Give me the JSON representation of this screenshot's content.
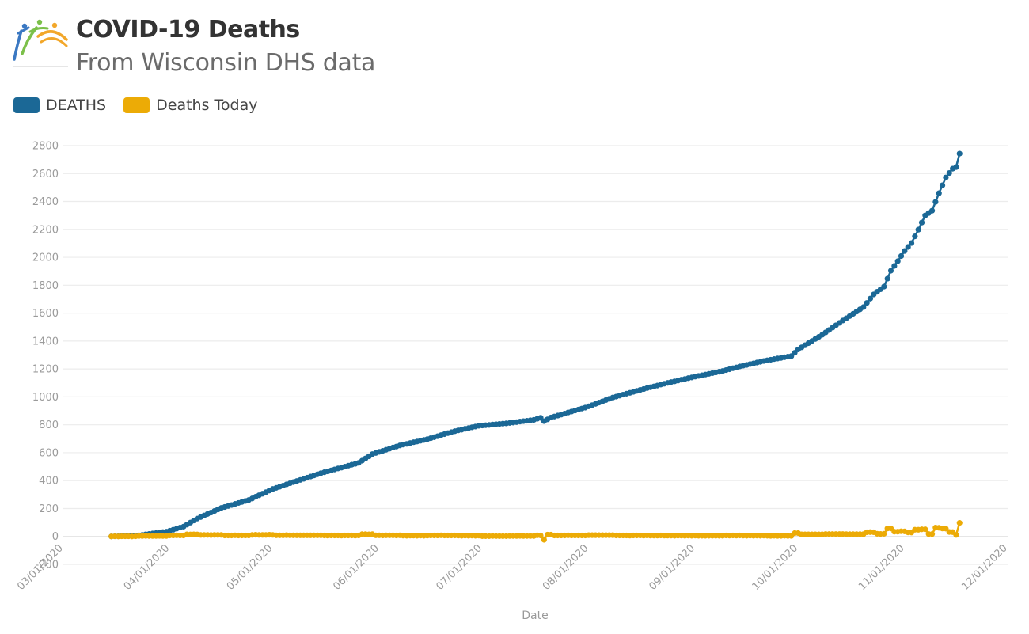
{
  "header": {
    "title": "COVID-19 Deaths",
    "subtitle": "From Wisconsin DHS data",
    "logo_icon": "people-rainbow-logo-icon"
  },
  "legend": [
    {
      "label": "DEATHS",
      "color": "#1b6896"
    },
    {
      "label": "Deaths Today",
      "color": "#ecab06"
    }
  ],
  "chart_data": {
    "type": "line",
    "title": "COVID-19 Deaths",
    "subtitle": "From Wisconsin DHS data",
    "xlabel": "Date",
    "ylabel": "",
    "x_start_date": "2020-03-15",
    "x_end_date": "2020-11-17",
    "x_range": [
      "2020-03-01",
      "2020-12-01"
    ],
    "ylim": [
      -200,
      2800
    ],
    "y_ticks": [
      -200,
      0,
      200,
      400,
      600,
      800,
      1000,
      1200,
      1400,
      1600,
      1800,
      2000,
      2200,
      2400,
      2600,
      2800
    ],
    "y_tick_labels": [
      "-200",
      "0",
      "200",
      "400",
      "600",
      "800",
      "1000",
      "1200",
      "1400",
      "1600",
      "1800",
      "2000",
      "2200",
      "2400",
      "2600",
      "2800"
    ],
    "x_tick_labels": [
      "03/01/2020",
      "04/01/2020",
      "05/01/2020",
      "06/01/2020",
      "07/01/2020",
      "08/01/2020",
      "09/01/2020",
      "10/01/2020",
      "11/01/2020",
      "12/01/2020"
    ],
    "x_tick_dates": [
      "2020-03-01",
      "2020-04-01",
      "2020-05-01",
      "2020-06-01",
      "2020-07-01",
      "2020-08-01",
      "2020-09-01",
      "2020-10-01",
      "2020-11-01",
      "2020-12-01"
    ],
    "grid": true,
    "legend_position": "top-left",
    "series": [
      {
        "name": "DEATHS",
        "color": "#1b6896",
        "values": [
          0,
          1,
          1,
          2,
          3,
          4,
          4,
          5,
          8,
          11,
          15,
          18,
          21,
          24,
          28,
          31,
          34,
          41,
          48,
          56,
          63,
          70,
          85,
          99,
          114,
          128,
          139,
          150,
          161,
          171,
          182,
          193,
          204,
          211,
          218,
          225,
          233,
          240,
          247,
          254,
          261,
          272,
          284,
          295,
          306,
          317,
          329,
          340,
          348,
          356,
          364,
          373,
          381,
          389,
          397,
          405,
          413,
          421,
          429,
          437,
          445,
          453,
          460,
          466,
          473,
          480,
          487,
          493,
          500,
          507,
          514,
          520,
          527,
          543,
          559,
          574,
          590,
          598,
          606,
          613,
          621,
          629,
          637,
          644,
          652,
          658,
          663,
          669,
          675,
          680,
          686,
          691,
          697,
          704,
          711,
          718,
          726,
          733,
          740,
          747,
          754,
          760,
          765,
          771,
          776,
          782,
          787,
          793,
          795,
          797,
          799,
          802,
          804,
          806,
          808,
          810,
          813,
          816,
          819,
          823,
          826,
          829,
          832,
          835,
          843,
          850,
          826,
          839,
          852,
          859,
          866,
          873,
          880,
          888,
          895,
          902,
          909,
          916,
          923,
          932,
          941,
          950,
          959,
          968,
          977,
          986,
          995,
          1002,
          1009,
          1016,
          1023,
          1029,
          1036,
          1043,
          1050,
          1056,
          1063,
          1069,
          1075,
          1081,
          1088,
          1094,
          1100,
          1106,
          1111,
          1117,
          1123,
          1128,
          1134,
          1139,
          1145,
          1150,
          1155,
          1160,
          1165,
          1170,
          1175,
          1180,
          1185,
          1192,
          1198,
          1205,
          1211,
          1218,
          1224,
          1229,
          1235,
          1240,
          1246,
          1251,
          1257,
          1262,
          1266,
          1271,
          1275,
          1279,
          1284,
          1288,
          1292,
          1316,
          1340,
          1355,
          1370,
          1385,
          1400,
          1415,
          1430,
          1445,
          1462,
          1479,
          1496,
          1513,
          1530,
          1547,
          1563,
          1579,
          1595,
          1611,
          1627,
          1643,
          1673,
          1704,
          1734,
          1753,
          1771,
          1790,
          1847,
          1904,
          1938,
          1972,
          2009,
          2045,
          2074,
          2102,
          2150,
          2198,
          2249,
          2300,
          2317,
          2334,
          2397,
          2459,
          2516,
          2572,
          2604,
          2635,
          2646,
          2743
        ]
      },
      {
        "name": "Deaths Today",
        "color": "#ecab06",
        "values": [
          0,
          1,
          0,
          1,
          1,
          1,
          0,
          1,
          3,
          3,
          4,
          3,
          3,
          3,
          4,
          3,
          3,
          7,
          7,
          8,
          7,
          7,
          15,
          14,
          15,
          14,
          11,
          11,
          11,
          10,
          11,
          11,
          11,
          7,
          7,
          7,
          8,
          7,
          7,
          7,
          7,
          11,
          12,
          11,
          11,
          11,
          12,
          11,
          8,
          8,
          8,
          9,
          8,
          8,
          8,
          8,
          8,
          8,
          8,
          8,
          8,
          8,
          7,
          6,
          7,
          7,
          7,
          6,
          7,
          7,
          7,
          6,
          7,
          16,
          16,
          15,
          16,
          8,
          8,
          7,
          8,
          8,
          8,
          7,
          8,
          6,
          5,
          6,
          6,
          5,
          6,
          5,
          6,
          7,
          7,
          7,
          8,
          7,
          7,
          7,
          7,
          6,
          5,
          6,
          5,
          6,
          5,
          6,
          2,
          2,
          2,
          3,
          2,
          2,
          2,
          2,
          3,
          3,
          3,
          4,
          3,
          3,
          3,
          3,
          8,
          7,
          -24,
          13,
          13,
          7,
          7,
          7,
          7,
          8,
          7,
          7,
          7,
          7,
          7,
          9,
          9,
          9,
          9,
          9,
          9,
          9,
          9,
          7,
          7,
          7,
          7,
          6,
          7,
          7,
          7,
          6,
          7,
          6,
          6,
          6,
          7,
          6,
          6,
          6,
          5,
          6,
          6,
          5,
          6,
          5,
          6,
          5,
          5,
          5,
          5,
          5,
          5,
          5,
          5,
          7,
          6,
          7,
          6,
          7,
          6,
          5,
          6,
          5,
          6,
          5,
          6,
          5,
          4,
          5,
          4,
          4,
          5,
          4,
          4,
          24,
          24,
          15,
          15,
          15,
          15,
          15,
          15,
          15,
          17,
          17,
          17,
          17,
          17,
          17,
          16,
          16,
          16,
          16,
          16,
          16,
          30,
          31,
          30,
          19,
          18,
          19,
          57,
          57,
          34,
          34,
          37,
          36,
          29,
          28,
          48,
          48,
          51,
          51,
          17,
          17,
          63,
          62,
          57,
          56,
          32,
          31,
          11,
          97
        ]
      }
    ]
  }
}
